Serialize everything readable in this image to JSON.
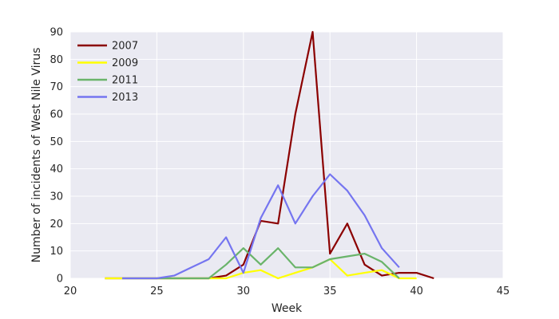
{
  "chart_data": {
    "type": "line",
    "xlabel": "Week",
    "ylabel": "Number of incidents of West Nile Virus",
    "xlim": [
      20,
      45
    ],
    "ylim": [
      0,
      90
    ],
    "xticks": [
      "20",
      "25",
      "30",
      "35",
      "40",
      "45"
    ],
    "yticks": [
      "0",
      "10",
      "20",
      "30",
      "40",
      "50",
      "60",
      "70",
      "80",
      "90"
    ],
    "grid": true,
    "legend_position": "top-left",
    "background_color": "#eaeaf2",
    "series": [
      {
        "name": "2007",
        "color": "#8b0000",
        "x": [
          22,
          23,
          24,
          25,
          26,
          27,
          28,
          29,
          30,
          31,
          32,
          33,
          34,
          35,
          36,
          37,
          38,
          39,
          40,
          41
        ],
        "y": [
          0,
          0,
          0,
          0,
          0,
          0,
          0,
          1,
          5,
          21,
          20,
          60,
          90,
          9,
          20,
          5,
          1,
          2,
          2,
          0
        ]
      },
      {
        "name": "2009",
        "color": "#ffff00",
        "x": [
          22,
          23,
          24,
          25,
          26,
          27,
          28,
          29,
          30,
          31,
          32,
          33,
          34,
          35,
          36,
          37,
          38,
          39,
          40
        ],
        "y": [
          0,
          0,
          0,
          0,
          0,
          0,
          0,
          0,
          2,
          3,
          0,
          2,
          4,
          7,
          1,
          2,
          3,
          0,
          0
        ]
      },
      {
        "name": "2011",
        "color": "#6ab46a",
        "x": [
          23,
          24,
          25,
          26,
          27,
          28,
          29,
          30,
          31,
          32,
          33,
          34,
          35,
          36,
          37,
          38,
          39
        ],
        "y": [
          0,
          0,
          0,
          0,
          0,
          0,
          5,
          11,
          5,
          11,
          4,
          4,
          7,
          8,
          9,
          6,
          0
        ]
      },
      {
        "name": "2013",
        "color": "#7575f0",
        "x": [
          23,
          24,
          25,
          26,
          27,
          28,
          29,
          30,
          31,
          32,
          33,
          34,
          35,
          36,
          37,
          38,
          39
        ],
        "y": [
          0,
          0,
          0,
          1,
          4,
          7,
          15,
          2,
          22,
          34,
          20,
          30,
          38,
          32,
          23,
          11,
          4
        ]
      }
    ]
  }
}
